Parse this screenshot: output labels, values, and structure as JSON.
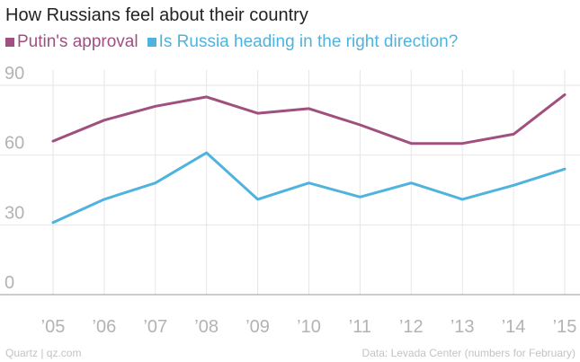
{
  "chart_data": {
    "type": "line",
    "title": "How Russians feel about their country",
    "categories": [
      "’05",
      "’06",
      "’07",
      "’08",
      "’09",
      "’10",
      "’11",
      "’12",
      "’13",
      "’14",
      "’15"
    ],
    "series": [
      {
        "name": "Putin's approval",
        "color": "#a0507f",
        "values": [
          66,
          75,
          81,
          85,
          78,
          80,
          73,
          65,
          65,
          69,
          86
        ]
      },
      {
        "name": "Is Russia heading in the right direction?",
        "color": "#4fb3de",
        "values": [
          31,
          41,
          48,
          61,
          41,
          48,
          42,
          48,
          41,
          47,
          54
        ]
      }
    ],
    "xlabel": "",
    "ylabel": "",
    "ylim": [
      0,
      90
    ],
    "yticks": [
      0,
      30,
      60,
      90
    ],
    "grid": true,
    "legend": "top-left"
  },
  "footer": {
    "source_left": "Quartz | qz.com",
    "source_right": "Data: Levada Center (numbers for February)"
  },
  "colors": {
    "grid": "#e6e6e6",
    "baseline": "#9a9a9a",
    "tick_text": "#b3b3b3"
  }
}
